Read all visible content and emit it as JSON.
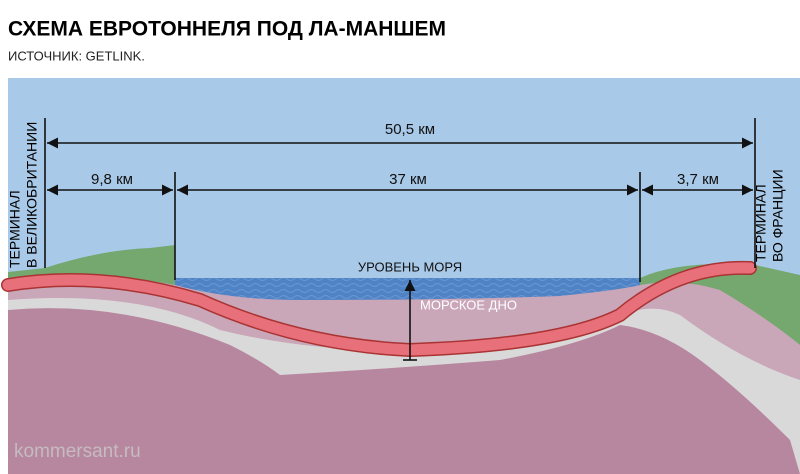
{
  "header": {
    "title": "СХЕМА ЕВРОТОННЕЛЯ ПОД ЛА-МАНШЕМ",
    "source": "ИСТОЧНИК: GETLINK."
  },
  "dimensions": {
    "total": "50,5 км",
    "uk_land": "9,8 км",
    "under_sea": "37 км",
    "fr_land": "3,7 км"
  },
  "terminals": {
    "uk": [
      "ТЕРМИНАЛ",
      "В ВЕЛИКОБРИТАНИИ"
    ],
    "fr": [
      "ТЕРМИНАЛ",
      "ВО ФРАНЦИИ"
    ]
  },
  "labels": {
    "sea_level": "УРОВЕНЬ МОРЯ",
    "sea_floor": "МОРСКОЕ ДНО"
  },
  "watermark": "kommersant.ru"
}
